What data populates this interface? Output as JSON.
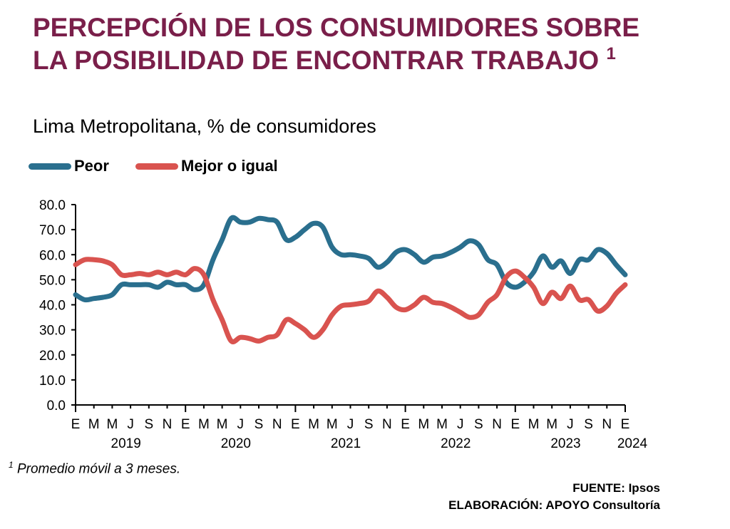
{
  "title": "PERCEPCIÓN DE LOS CONSUMIDORES SOBRE LA POSIBILIDAD DE ENCONTRAR TRABAJO",
  "title_marker": "1",
  "subtitle": "Lima Metropolitana, % de consumidores",
  "footnote": {
    "marker": "1",
    "text": " Promedio móvil a 3 meses."
  },
  "source": {
    "fuente": "FUENTE: Ipsos",
    "elaboracion": "ELABORACIÓN: APOYO Consultoría"
  },
  "colors": {
    "title": "#7a1f4a",
    "peor": "#2a6f8e",
    "mejor": "#d9534f",
    "axis": "#000000"
  },
  "chart_data": {
    "type": "line",
    "title": "PERCEPCIÓN DE LOS CONSUMIDORES SOBRE LA POSIBILIDAD DE ENCONTRAR TRABAJO",
    "ylabel": "",
    "xlabel": "",
    "ylim": [
      0,
      80
    ],
    "y_ticks": [
      "0.0",
      "10.0",
      "20.0",
      "30.0",
      "40.0",
      "50.0",
      "60.0",
      "70.0",
      "80.0"
    ],
    "grid": false,
    "legend_position": "top-left",
    "x_tick_labels": [
      "E",
      "M",
      "M",
      "J",
      "S",
      "N",
      "E",
      "M",
      "M",
      "J",
      "S",
      "N",
      "E",
      "M",
      "M",
      "J",
      "S",
      "N",
      "E",
      "M",
      "M",
      "J",
      "S",
      "N",
      "E",
      "M",
      "M",
      "J",
      "S",
      "N",
      "E"
    ],
    "years": [
      {
        "label": "2019",
        "start_index": 0
      },
      {
        "label": "2020",
        "start_index": 12
      },
      {
        "label": "2021",
        "start_index": 24
      },
      {
        "label": "2022",
        "start_index": 36
      },
      {
        "label": "2023",
        "start_index": 48
      },
      {
        "label": "2024",
        "start_index": 60
      }
    ],
    "x": [
      "2019-01",
      "2019-02",
      "2019-03",
      "2019-04",
      "2019-05",
      "2019-06",
      "2019-07",
      "2019-08",
      "2019-09",
      "2019-10",
      "2019-11",
      "2019-12",
      "2020-01",
      "2020-02",
      "2020-03",
      "2020-04",
      "2020-05",
      "2020-06",
      "2020-07",
      "2020-08",
      "2020-09",
      "2020-10",
      "2020-11",
      "2020-12",
      "2021-01",
      "2021-02",
      "2021-03",
      "2021-04",
      "2021-05",
      "2021-06",
      "2021-07",
      "2021-08",
      "2021-09",
      "2021-10",
      "2021-11",
      "2021-12",
      "2022-01",
      "2022-02",
      "2022-03",
      "2022-04",
      "2022-05",
      "2022-06",
      "2022-07",
      "2022-08",
      "2022-09",
      "2022-10",
      "2022-11",
      "2022-12",
      "2023-01",
      "2023-02",
      "2023-03",
      "2023-04",
      "2023-05",
      "2023-06",
      "2023-07",
      "2023-08",
      "2023-09",
      "2023-10",
      "2023-11",
      "2023-12",
      "2024-01"
    ],
    "series": [
      {
        "name": "Peor",
        "color": "#2a6f8e",
        "values": [
          44,
          42,
          42.5,
          43,
          44,
          48,
          48,
          48,
          48,
          47,
          49,
          48,
          48,
          46,
          48,
          58,
          66,
          74.5,
          73,
          73,
          74.5,
          74,
          73,
          66,
          67,
          70,
          72.5,
          71,
          63,
          60,
          60,
          59.5,
          58.5,
          55,
          57,
          61,
          62,
          60,
          57,
          59,
          59.5,
          61,
          63,
          65.5,
          64,
          58,
          56,
          49,
          47,
          49,
          53,
          59.5,
          55,
          57.5,
          52.5,
          58,
          58,
          62,
          60.5,
          56,
          52
        ]
      },
      {
        "name": "Mejor o igual",
        "color": "#d9534f",
        "values": [
          56,
          58,
          58,
          57.5,
          56,
          52,
          52,
          52.5,
          52,
          53,
          52,
          53,
          52,
          54.5,
          52,
          42,
          34,
          25.5,
          27,
          26.5,
          25.5,
          27,
          28,
          34,
          32.5,
          30,
          27,
          30,
          36,
          39.5,
          40,
          40.5,
          41.5,
          45.5,
          43,
          39,
          38,
          40,
          43,
          41,
          40.5,
          39,
          37,
          35,
          36,
          41,
          44,
          51,
          53.5,
          51,
          47,
          40.5,
          45,
          42.5,
          47.5,
          42,
          42,
          37.5,
          39.5,
          44.5,
          48
        ]
      }
    ]
  }
}
